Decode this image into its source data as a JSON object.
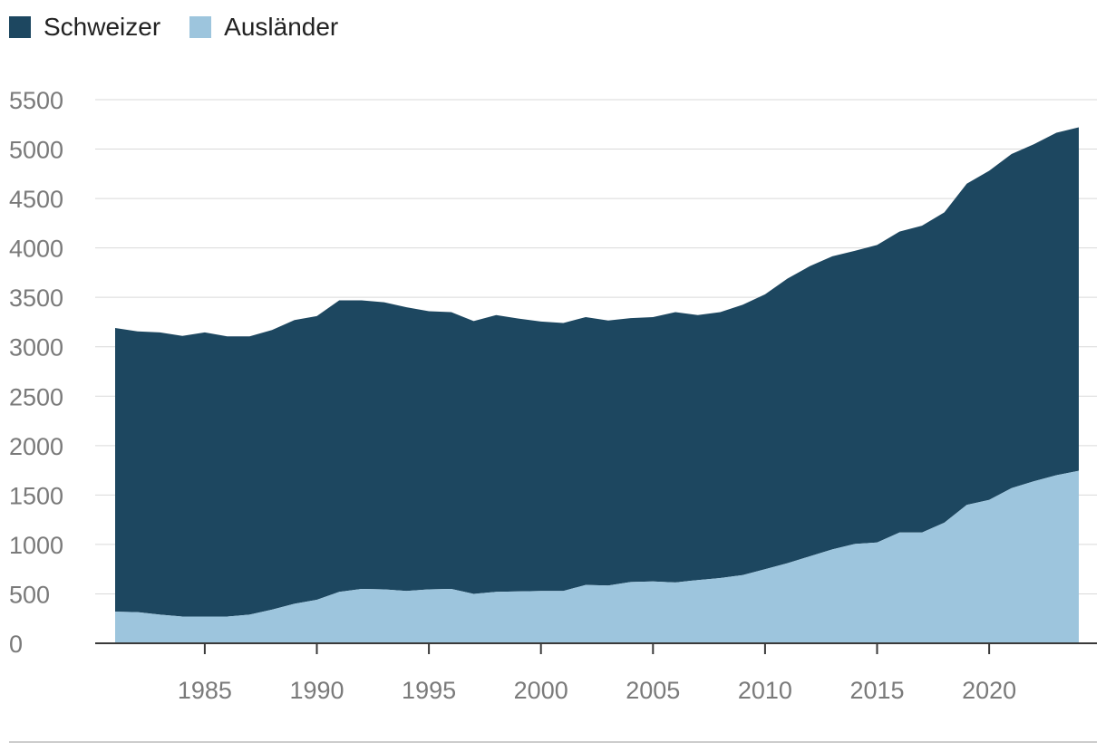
{
  "colors": {
    "schweizer": "#1d4760",
    "auslaender": "#9dc5dd",
    "grid": "#d9d9d9",
    "axis": "#3a3a3a",
    "footer_rule": "#cccccc"
  },
  "chart_data": {
    "type": "area",
    "stacked": true,
    "title": "",
    "xlabel": "",
    "ylabel": "",
    "xlim": [
      1981,
      2024
    ],
    "ylim": [
      0,
      5500
    ],
    "legend_position": "top-left",
    "grid": true,
    "x": [
      1981,
      1982,
      1983,
      1984,
      1985,
      1986,
      1987,
      1988,
      1989,
      1990,
      1991,
      1992,
      1993,
      1994,
      1995,
      1996,
      1997,
      1998,
      1999,
      2000,
      2001,
      2002,
      2003,
      2004,
      2005,
      2006,
      2007,
      2008,
      2009,
      2010,
      2011,
      2012,
      2013,
      2014,
      2015,
      2016,
      2017,
      2018,
      2019,
      2020,
      2021,
      2022,
      2023,
      2024
    ],
    "series": [
      {
        "name": "Ausländer",
        "values": [
          320,
          315,
          290,
          270,
          270,
          270,
          290,
          340,
          400,
          440,
          520,
          550,
          545,
          530,
          545,
          550,
          500,
          520,
          525,
          530,
          530,
          590,
          585,
          620,
          625,
          615,
          640,
          660,
          690,
          750,
          810,
          880,
          950,
          1005,
          1020,
          1120,
          1120,
          1220,
          1400,
          1450,
          1570,
          1640,
          1700,
          1745
        ]
      },
      {
        "name": "Schweizer",
        "values": [
          2870,
          2840,
          2855,
          2840,
          2875,
          2835,
          2815,
          2830,
          2870,
          2870,
          2950,
          2920,
          2905,
          2870,
          2815,
          2800,
          2760,
          2800,
          2760,
          2725,
          2710,
          2710,
          2680,
          2670,
          2675,
          2735,
          2680,
          2690,
          2735,
          2780,
          2880,
          2935,
          2965,
          2965,
          3010,
          3045,
          3105,
          3140,
          3250,
          3330,
          3380,
          3410,
          3465,
          3475
        ]
      }
    ],
    "yticks": [
      0,
      500,
      1000,
      1500,
      2000,
      2500,
      3000,
      3500,
      4000,
      4500,
      5000,
      5500
    ],
    "xticks": [
      1985,
      1990,
      1995,
      2000,
      2005,
      2010,
      2015,
      2020
    ]
  }
}
